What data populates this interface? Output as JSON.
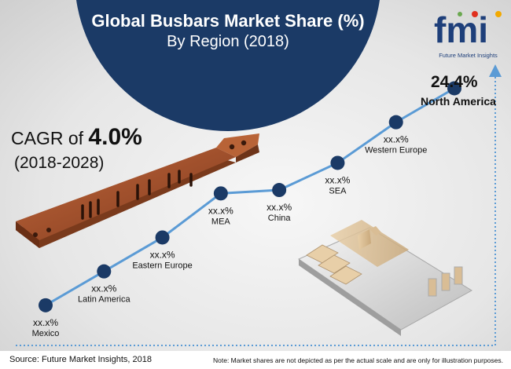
{
  "header": {
    "title": "Global Busbars Market Share (%)",
    "subtitle": "By Region (2018)"
  },
  "logo": {
    "wordmark": "fmi",
    "tagline": "Future Market Insights"
  },
  "cagr": {
    "prefix": "CAGR of",
    "value": "4.0%",
    "period": "(2018-2028)"
  },
  "highlight": {
    "value": "24.4%",
    "region": "North America"
  },
  "footer": {
    "source": "Source: Future Market Insights, 2018",
    "note": "Note: Market shares are not depicted as per the actual scale and are only for illustration purposes."
  },
  "colors": {
    "navy": "#1b3a66",
    "line": "#5b9bd5",
    "arrow": "#5b9bd5",
    "copper": "#a0502c"
  },
  "chart_data": {
    "type": "line",
    "title": "Global Busbars Market Share (%)",
    "subtitle": "By Region (2018)",
    "categories": [
      "Mexico",
      "Latin America",
      "Eastern Europe",
      "MEA",
      "China",
      "SEA",
      "Western Europe",
      "North America"
    ],
    "value_labels": [
      "xx.x%",
      "xx.x%",
      "xx.x%",
      "xx.x%",
      "xx.x%",
      "xx.x%",
      "xx.x%",
      "24.4%"
    ],
    "series": [
      {
        "values": [
          1,
          2,
          3,
          4.3,
          4.4,
          5.2,
          6.4,
          7.4
        ]
      }
    ],
    "ylim": [
      0,
      8.5
    ],
    "grid": false,
    "legend": "none"
  }
}
